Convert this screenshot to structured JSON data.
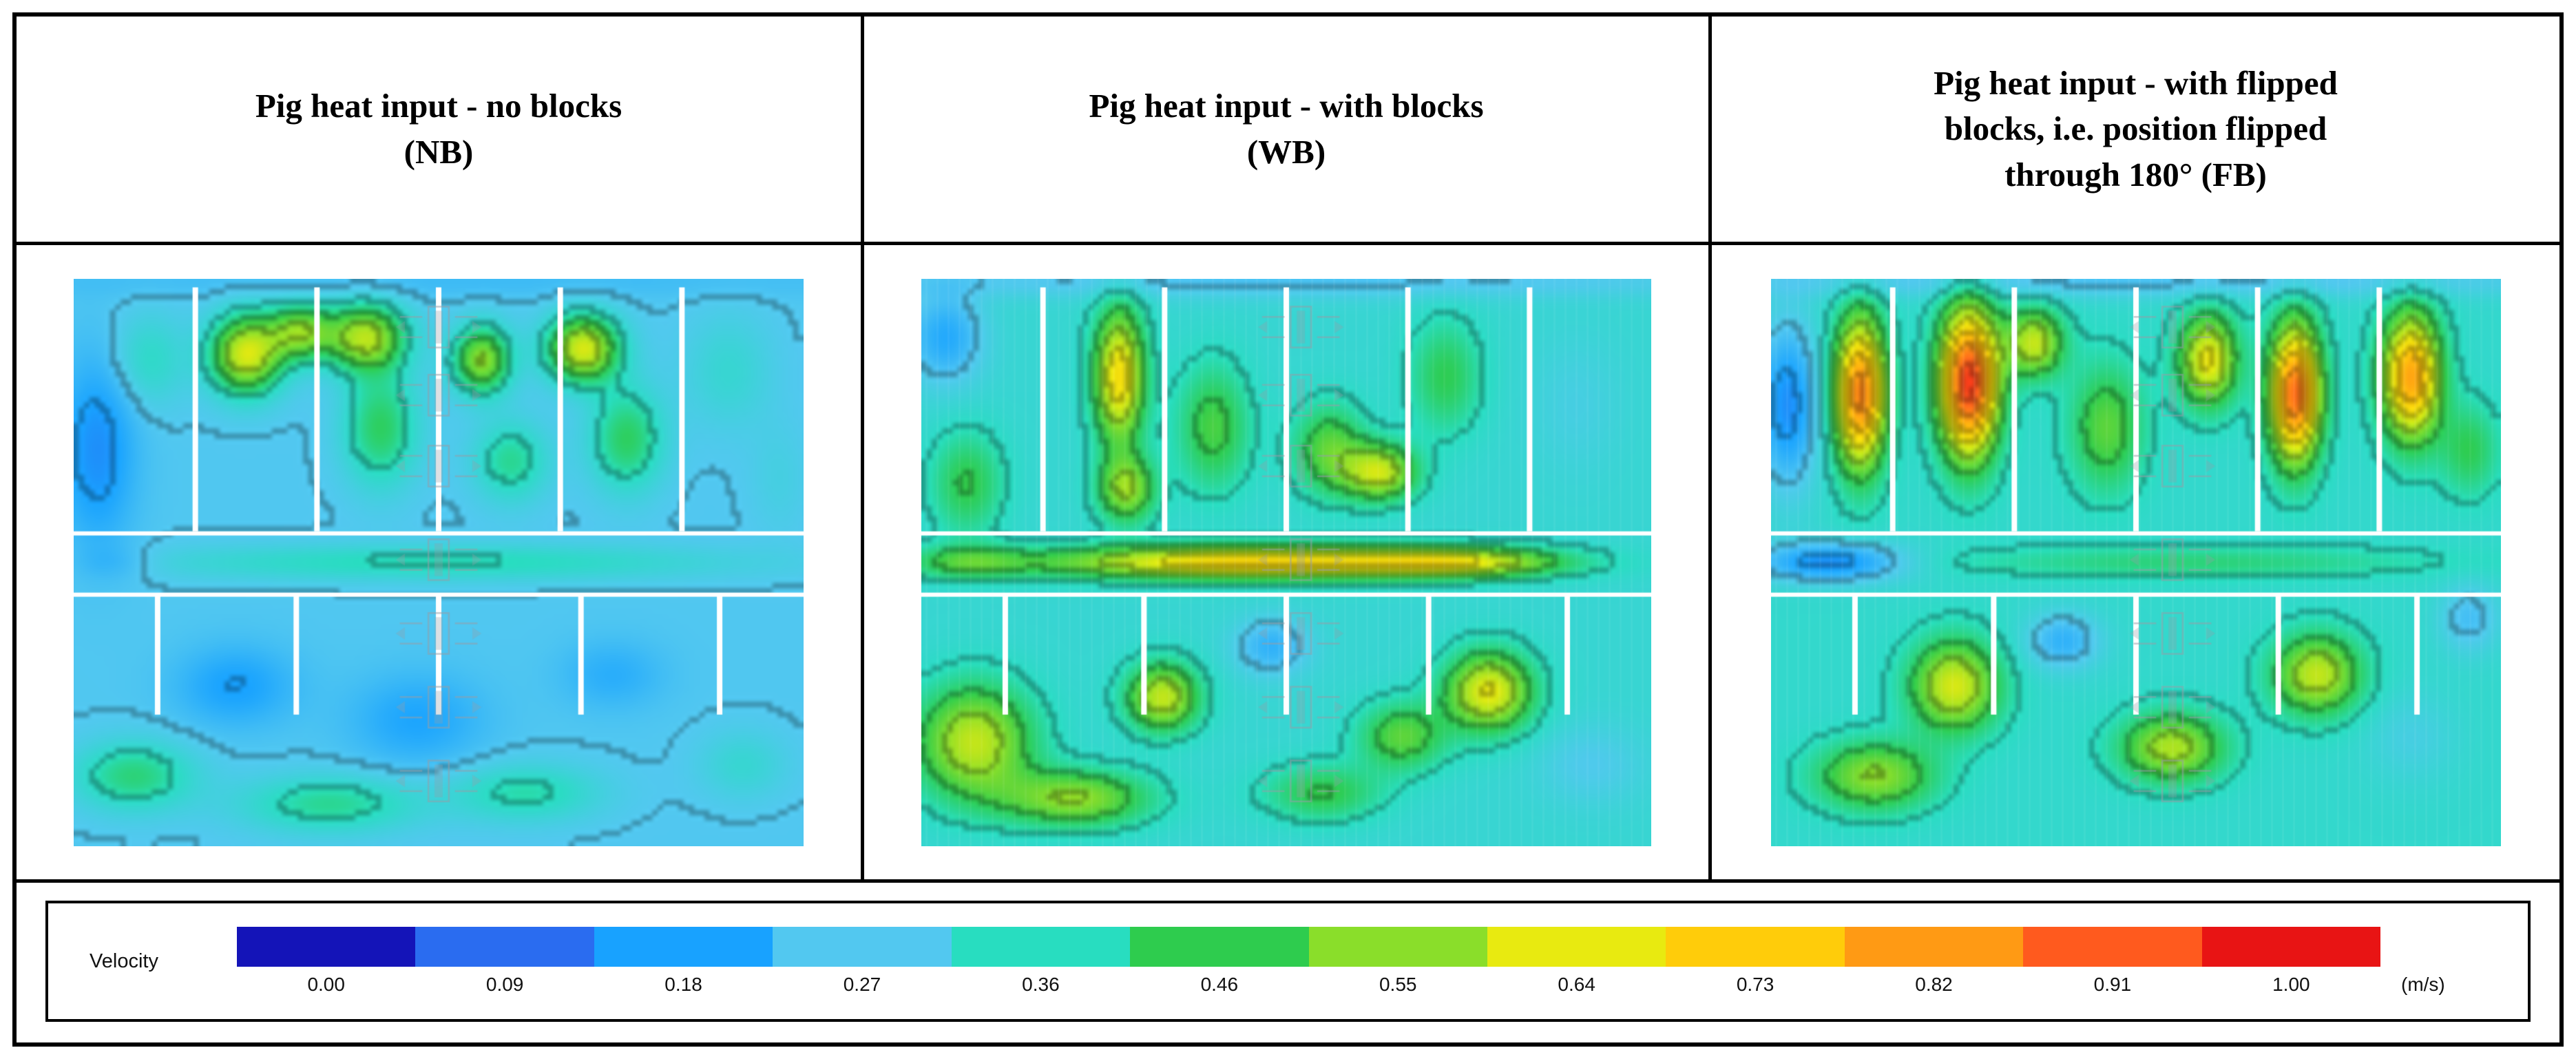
{
  "panels": [
    {
      "id": "NB",
      "title": "Pig heat input - no blocks\n(NB)"
    },
    {
      "id": "WB",
      "title": "Pig heat input - with blocks\n(WB)"
    },
    {
      "id": "FB",
      "title": "Pig heat input - with flipped\nblocks, i.e. position flipped\nthrough 180° (FB)"
    }
  ],
  "legend": {
    "label": "Velocity",
    "unit": "(m/s)",
    "ticks": [
      "0.00",
      "0.09",
      "0.18",
      "0.27",
      "0.36",
      "0.46",
      "0.55",
      "0.64",
      "0.73",
      "0.82",
      "0.91",
      "1.00"
    ],
    "colors": [
      "#1414b8",
      "#2a6cf0",
      "#18a2ff",
      "#52c8f0",
      "#28ddc0",
      "#2ecc4e",
      "#8ade2a",
      "#e8ea10",
      "#ffcc0a",
      "#ff9a14",
      "#ff5a1e",
      "#e81414"
    ]
  },
  "chart_data": {
    "type": "heatmap",
    "title": "CFD velocity contours of piggery cross-sections under pig heat input",
    "value_label": "Velocity",
    "unit": "m/s",
    "scale": {
      "min": 0.0,
      "max": 1.0,
      "levels": 12
    },
    "panels": [
      {
        "name": "NB",
        "label": "Pig heat input - no blocks (NB)",
        "base": 0.27,
        "texture": "none",
        "blobs": [
          {
            "x": 0.03,
            "y": 0.3,
            "rx": 0.05,
            "ry": 0.16,
            "v": 0.15
          },
          {
            "x": 0.5,
            "y": 0.0,
            "rx": 0.7,
            "ry": 0.03,
            "v": 0.24
          },
          {
            "x": 0.235,
            "y": 0.13,
            "rx": 0.05,
            "ry": 0.07,
            "v": 0.62
          },
          {
            "x": 0.31,
            "y": 0.09,
            "rx": 0.045,
            "ry": 0.05,
            "v": 0.52
          },
          {
            "x": 0.4,
            "y": 0.1,
            "rx": 0.055,
            "ry": 0.06,
            "v": 0.58
          },
          {
            "x": 0.42,
            "y": 0.26,
            "rx": 0.05,
            "ry": 0.1,
            "v": 0.44
          },
          {
            "x": 0.56,
            "y": 0.14,
            "rx": 0.04,
            "ry": 0.06,
            "v": 0.55
          },
          {
            "x": 0.7,
            "y": 0.12,
            "rx": 0.05,
            "ry": 0.06,
            "v": 0.62
          },
          {
            "x": 0.76,
            "y": 0.28,
            "rx": 0.05,
            "ry": 0.09,
            "v": 0.44
          },
          {
            "x": 0.6,
            "y": 0.32,
            "rx": 0.05,
            "ry": 0.07,
            "v": 0.4
          },
          {
            "x": 0.9,
            "y": 0.16,
            "rx": 0.06,
            "ry": 0.1,
            "v": 0.33
          },
          {
            "x": 0.1,
            "y": 0.14,
            "rx": 0.05,
            "ry": 0.08,
            "v": 0.35
          },
          {
            "x": 0.5,
            "y": 0.5,
            "rx": 0.4,
            "ry": 0.032,
            "v": 0.37
          },
          {
            "x": 0.05,
            "y": 0.5,
            "rx": 0.06,
            "ry": 0.03,
            "v": 0.22
          },
          {
            "x": 0.22,
            "y": 0.72,
            "rx": 0.08,
            "ry": 0.07,
            "v": 0.18
          },
          {
            "x": 0.47,
            "y": 0.78,
            "rx": 0.09,
            "ry": 0.08,
            "v": 0.19
          },
          {
            "x": 0.74,
            "y": 0.7,
            "rx": 0.07,
            "ry": 0.06,
            "v": 0.21
          },
          {
            "x": 0.08,
            "y": 0.88,
            "rx": 0.08,
            "ry": 0.06,
            "v": 0.42
          },
          {
            "x": 0.35,
            "y": 0.93,
            "rx": 0.12,
            "ry": 0.05,
            "v": 0.4
          },
          {
            "x": 0.62,
            "y": 0.91,
            "rx": 0.1,
            "ry": 0.05,
            "v": 0.38
          },
          {
            "x": 0.92,
            "y": 0.86,
            "rx": 0.06,
            "ry": 0.06,
            "v": 0.33
          },
          {
            "x": 0.97,
            "y": 0.35,
            "rx": 0.04,
            "ry": 0.1,
            "v": 0.3
          }
        ]
      },
      {
        "name": "WB",
        "label": "Pig heat input - with blocks (WB)",
        "base": 0.33,
        "texture": "vector-striations",
        "blobs": [
          {
            "x": 0.5,
            "y": 0.0,
            "rx": 0.7,
            "ry": 0.03,
            "v": 0.26
          },
          {
            "x": 0.03,
            "y": 0.1,
            "rx": 0.05,
            "ry": 0.08,
            "v": 0.2
          },
          {
            "x": 0.06,
            "y": 0.36,
            "rx": 0.05,
            "ry": 0.09,
            "v": 0.46
          },
          {
            "x": 0.27,
            "y": 0.17,
            "rx": 0.035,
            "ry": 0.12,
            "v": 0.68
          },
          {
            "x": 0.28,
            "y": 0.37,
            "rx": 0.04,
            "ry": 0.06,
            "v": 0.55
          },
          {
            "x": 0.4,
            "y": 0.26,
            "rx": 0.05,
            "ry": 0.11,
            "v": 0.48
          },
          {
            "x": 0.56,
            "y": 0.3,
            "rx": 0.05,
            "ry": 0.08,
            "v": 0.5
          },
          {
            "x": 0.63,
            "y": 0.34,
            "rx": 0.05,
            "ry": 0.05,
            "v": 0.6
          },
          {
            "x": 0.72,
            "y": 0.17,
            "rx": 0.05,
            "ry": 0.1,
            "v": 0.45
          },
          {
            "x": 0.9,
            "y": 0.22,
            "rx": 0.06,
            "ry": 0.12,
            "v": 0.3
          },
          {
            "x": 0.45,
            "y": 0.5,
            "rx": 0.28,
            "ry": 0.03,
            "v": 0.7
          },
          {
            "x": 0.74,
            "y": 0.5,
            "rx": 0.14,
            "ry": 0.026,
            "v": 0.55
          },
          {
            "x": 0.06,
            "y": 0.5,
            "rx": 0.08,
            "ry": 0.03,
            "v": 0.45
          },
          {
            "x": 0.07,
            "y": 0.82,
            "rx": 0.08,
            "ry": 0.1,
            "v": 0.6
          },
          {
            "x": 0.21,
            "y": 0.92,
            "rx": 0.1,
            "ry": 0.05,
            "v": 0.55
          },
          {
            "x": 0.33,
            "y": 0.74,
            "rx": 0.05,
            "ry": 0.06,
            "v": 0.6
          },
          {
            "x": 0.48,
            "y": 0.65,
            "rx": 0.05,
            "ry": 0.05,
            "v": 0.22
          },
          {
            "x": 0.55,
            "y": 0.91,
            "rx": 0.08,
            "ry": 0.05,
            "v": 0.46
          },
          {
            "x": 0.78,
            "y": 0.73,
            "rx": 0.06,
            "ry": 0.07,
            "v": 0.64
          },
          {
            "x": 0.92,
            "y": 0.86,
            "rx": 0.07,
            "ry": 0.07,
            "v": 0.28
          },
          {
            "x": 0.66,
            "y": 0.81,
            "rx": 0.06,
            "ry": 0.06,
            "v": 0.5
          }
        ]
      },
      {
        "name": "FB",
        "label": "Pig heat input - with flipped blocks, i.e. position flipped through 180° (FB)",
        "base": 0.34,
        "texture": "vector-striations",
        "blobs": [
          {
            "x": 0.5,
            "y": 0.0,
            "rx": 0.7,
            "ry": 0.03,
            "v": 0.26
          },
          {
            "x": 0.02,
            "y": 0.22,
            "rx": 0.04,
            "ry": 0.14,
            "v": 0.15
          },
          {
            "x": 0.12,
            "y": 0.2,
            "rx": 0.035,
            "ry": 0.13,
            "v": 0.85
          },
          {
            "x": 0.27,
            "y": 0.18,
            "rx": 0.04,
            "ry": 0.13,
            "v": 0.95
          },
          {
            "x": 0.36,
            "y": 0.11,
            "rx": 0.04,
            "ry": 0.06,
            "v": 0.6
          },
          {
            "x": 0.46,
            "y": 0.26,
            "rx": 0.05,
            "ry": 0.11,
            "v": 0.5
          },
          {
            "x": 0.6,
            "y": 0.14,
            "rx": 0.04,
            "ry": 0.08,
            "v": 0.65
          },
          {
            "x": 0.72,
            "y": 0.2,
            "rx": 0.035,
            "ry": 0.12,
            "v": 0.88
          },
          {
            "x": 0.88,
            "y": 0.17,
            "rx": 0.04,
            "ry": 0.11,
            "v": 0.8
          },
          {
            "x": 0.96,
            "y": 0.3,
            "rx": 0.04,
            "ry": 0.08,
            "v": 0.45
          },
          {
            "x": 0.08,
            "y": 0.5,
            "rx": 0.1,
            "ry": 0.034,
            "v": 0.15
          },
          {
            "x": 0.58,
            "y": 0.5,
            "rx": 0.33,
            "ry": 0.028,
            "v": 0.42
          },
          {
            "x": 0.25,
            "y": 0.72,
            "rx": 0.06,
            "ry": 0.08,
            "v": 0.62
          },
          {
            "x": 0.14,
            "y": 0.88,
            "rx": 0.08,
            "ry": 0.06,
            "v": 0.55
          },
          {
            "x": 0.4,
            "y": 0.64,
            "rx": 0.05,
            "ry": 0.05,
            "v": 0.22
          },
          {
            "x": 0.55,
            "y": 0.83,
            "rx": 0.07,
            "ry": 0.06,
            "v": 0.58
          },
          {
            "x": 0.75,
            "y": 0.7,
            "rx": 0.06,
            "ry": 0.07,
            "v": 0.6
          },
          {
            "x": 0.88,
            "y": 0.81,
            "rx": 0.06,
            "ry": 0.08,
            "v": 0.3
          },
          {
            "x": 0.96,
            "y": 0.6,
            "rx": 0.04,
            "ry": 0.06,
            "v": 0.25
          }
        ]
      }
    ]
  }
}
